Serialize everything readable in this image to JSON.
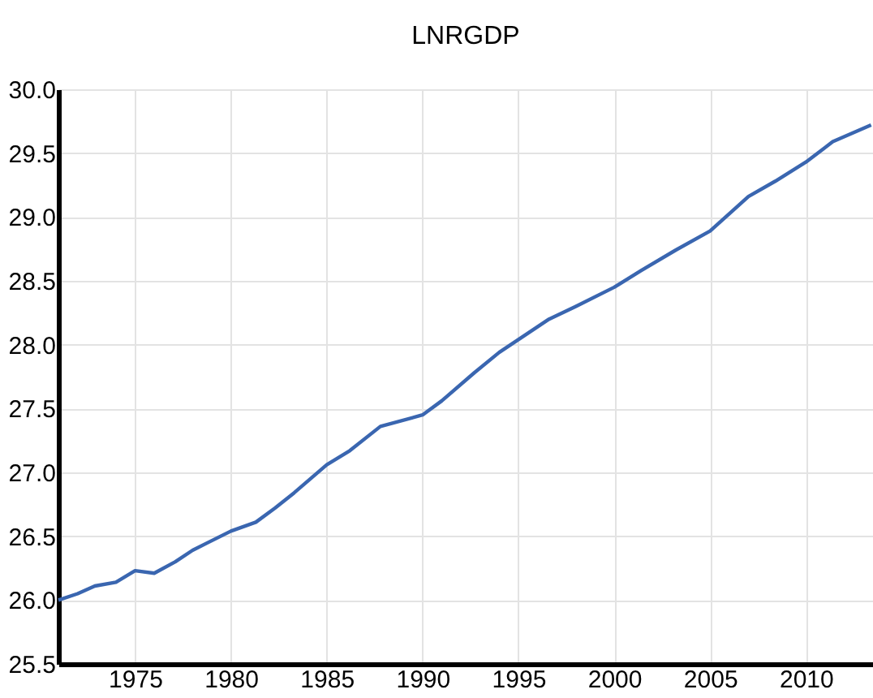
{
  "chart_data": {
    "type": "line",
    "title": "LNRGDP",
    "x": [
      1971,
      1972,
      1972.9,
      1974,
      1975,
      1976,
      1977.1,
      1978,
      1980,
      1981.3,
      1982.3,
      1983.3,
      1985,
      1986.2,
      1987.8,
      1990,
      1991,
      1992.7,
      1994,
      1995,
      1996.6,
      1998,
      2000,
      2001.4,
      2003.2,
      2005,
      2007,
      2008.4,
      2010,
      2011.4,
      2013.4
    ],
    "series": [
      {
        "color": "#3a66b0",
        "values": [
          26.0,
          26.05,
          26.11,
          26.14,
          26.23,
          26.21,
          26.3,
          26.39,
          26.54,
          26.61,
          26.72,
          26.84,
          27.06,
          27.17,
          27.36,
          27.45,
          27.56,
          27.78,
          27.94,
          28.04,
          28.2,
          28.3,
          28.45,
          28.58,
          28.74,
          28.89,
          29.16,
          29.28,
          29.43,
          29.59,
          29.72
        ]
      }
    ],
    "xlim": [
      1971,
      2013.5
    ],
    "xticks": [
      1975,
      1980,
      1985,
      1990,
      1995,
      2000,
      2005,
      2010
    ],
    "ylim": [
      25.5,
      30.0
    ],
    "yticks": [
      {
        "value": 25.5,
        "label": "25.5"
      },
      {
        "value": 26.0,
        "label": "26.0"
      },
      {
        "value": 26.5,
        "label": "26.5"
      },
      {
        "value": 27.0,
        "label": "27.0"
      },
      {
        "value": 27.5,
        "label": "27.5"
      },
      {
        "value": 28.0,
        "label": "28.0"
      },
      {
        "value": 28.5,
        "label": "28.5"
      },
      {
        "value": 29.0,
        "label": "29.0"
      },
      {
        "value": 29.5,
        "label": "29.5"
      },
      {
        "value": 30.0,
        "label": "30.0"
      }
    ],
    "grid": true
  }
}
